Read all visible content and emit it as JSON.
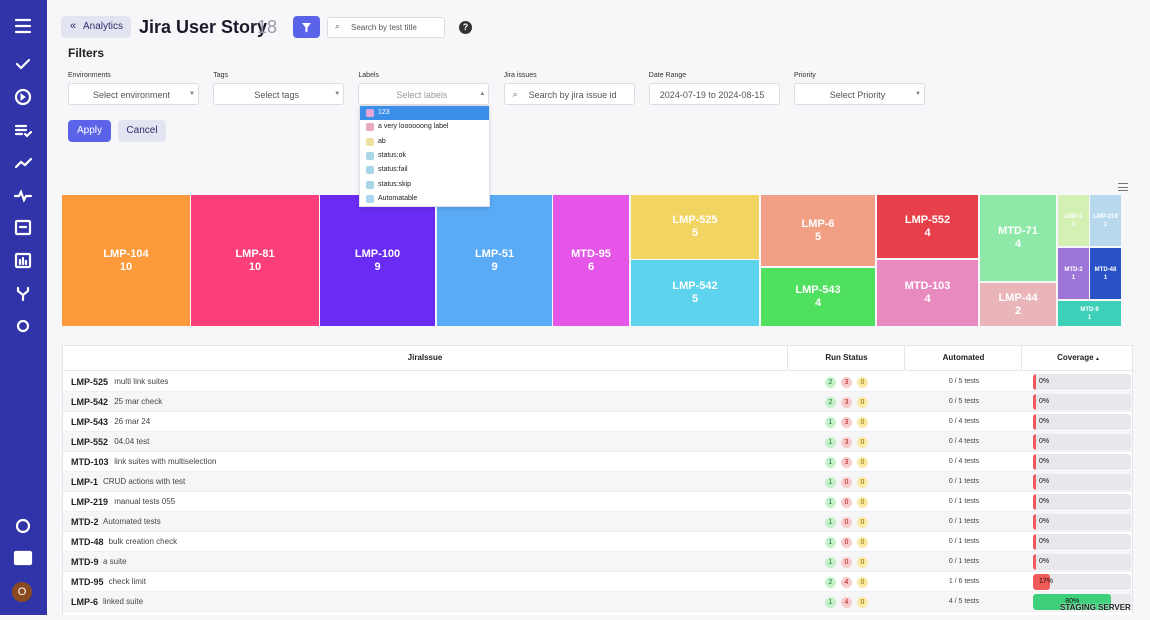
{
  "sidebar": {
    "avatar": "O"
  },
  "header": {
    "back": "Analytics",
    "title": "Jira User Story",
    "count": "18",
    "search": "Search by test title"
  },
  "filters": {
    "title": "Filters",
    "fields": [
      {
        "label": "Environments",
        "placeholder": "Select environment"
      },
      {
        "label": "Tags",
        "placeholder": "Select tags"
      },
      {
        "label": "Labels",
        "placeholder": "Select labels"
      },
      {
        "label": "Jira issues",
        "placeholder": "Search by jira issue id"
      },
      {
        "label": "Date Range",
        "placeholder": "2024-07-19 to 2024-08-15"
      },
      {
        "label": "Priority",
        "placeholder": "Select Priority"
      }
    ],
    "apply": "Apply",
    "cancel": "Cancel",
    "options": [
      {
        "label": "123",
        "color": "#e7a6d6"
      },
      {
        "label": "a very loooooong label",
        "color": "#eaa8bb"
      },
      {
        "label": "ab",
        "color": "#efe0a2"
      },
      {
        "label": "status:ok",
        "color": "#a9d6e6"
      },
      {
        "label": "status:fail",
        "color": "#a9d6e6"
      },
      {
        "label": "status:skip",
        "color": "#a9d6e6"
      },
      {
        "label": "Automatable",
        "color": "#a9d6f0"
      }
    ]
  },
  "treemap": [
    {
      "label": "LMP-104",
      "value": 10,
      "color": "#fd9a3c"
    },
    {
      "label": "LMP-81",
      "value": 10,
      "color": "#fb3f7b"
    },
    {
      "label": "LMP-100",
      "value": 9,
      "color": "#6a2cf5"
    },
    {
      "label": "LMP-51",
      "value": 9,
      "color": "#5aabf5"
    },
    {
      "label": "MTD-95",
      "value": 6,
      "color": "#e455e8"
    },
    {
      "label": "LMP-525",
      "value": 5,
      "color": "#f2d462"
    },
    {
      "label": "LMP-542",
      "value": 5,
      "color": "#5dd3ee"
    },
    {
      "label": "LMP-6",
      "value": 5,
      "color": "#f2a085"
    },
    {
      "label": "LMP-543",
      "value": 4,
      "color": "#4ee05e"
    },
    {
      "label": "LMP-552",
      "value": 4,
      "color": "#e8404b"
    },
    {
      "label": "MTD-103",
      "value": 4,
      "color": "#e889bf"
    },
    {
      "label": "MTD-71",
      "value": 4,
      "color": "#8ee8a8"
    },
    {
      "label": "LMP-44",
      "value": 2,
      "color": "#eab5b9"
    },
    {
      "label": "LMP-1",
      "value": 1,
      "color": "#d4f0b4"
    },
    {
      "label": "LMP-219",
      "value": 1,
      "color": "#b8d8ee"
    },
    {
      "label": "MTD-2",
      "value": 1,
      "color": "#9d75d8"
    },
    {
      "label": "MTD-48",
      "value": 1,
      "color": "#2a52c8"
    },
    {
      "label": "MTD-9",
      "value": 1,
      "color": "#3dcfb8"
    }
  ],
  "table": {
    "headers": [
      "JiraIssue",
      "Run Status",
      "Automated",
      "Coverage"
    ],
    "rows": [
      {
        "key": "LMP-525",
        "desc": "multi link suites",
        "status": [
          2,
          3,
          0
        ],
        "automated": "0 / 5 tests",
        "coverage": 0,
        "coverage_label": "0%"
      },
      {
        "key": "LMP-542",
        "desc": "25 mar check",
        "status": [
          2,
          3,
          0
        ],
        "automated": "0 / 5 tests",
        "coverage": 0,
        "coverage_label": "0%"
      },
      {
        "key": "LMP-543",
        "desc": "26 mar 24",
        "status": [
          1,
          3,
          0
        ],
        "automated": "0 / 4 tests",
        "coverage": 0,
        "coverage_label": "0%"
      },
      {
        "key": "LMP-552",
        "desc": "04.04 test",
        "status": [
          1,
          3,
          0
        ],
        "automated": "0 / 4 tests",
        "coverage": 0,
        "coverage_label": "0%"
      },
      {
        "key": "MTD-103",
        "desc": "link suites with multiselection",
        "status": [
          1,
          3,
          0
        ],
        "automated": "0 / 4 tests",
        "coverage": 0,
        "coverage_label": "0%"
      },
      {
        "key": "LMP-1",
        "desc": "CRUD actions with test",
        "status": [
          1,
          0,
          0
        ],
        "automated": "0 / 1 tests",
        "coverage": 0,
        "coverage_label": "0%"
      },
      {
        "key": "LMP-219",
        "desc": "manual tests 055",
        "status": [
          1,
          0,
          0
        ],
        "automated": "0 / 1 tests",
        "coverage": 0,
        "coverage_label": "0%"
      },
      {
        "key": "MTD-2",
        "desc": "Automated tests",
        "status": [
          1,
          0,
          0
        ],
        "automated": "0 / 1 tests",
        "coverage": 0,
        "coverage_label": "0%"
      },
      {
        "key": "MTD-48",
        "desc": "bulk creation check",
        "status": [
          1,
          0,
          0
        ],
        "automated": "0 / 1 tests",
        "coverage": 0,
        "coverage_label": "0%"
      },
      {
        "key": "MTD-9",
        "desc": "a suite",
        "status": [
          1,
          0,
          0
        ],
        "automated": "0 / 1 tests",
        "coverage": 0,
        "coverage_label": "0%"
      },
      {
        "key": "MTD-95",
        "desc": "check limit",
        "status": [
          2,
          4,
          0
        ],
        "automated": "1 / 6 tests",
        "coverage": 17,
        "coverage_label": "17%"
      },
      {
        "key": "LMP-6",
        "desc": "linked suite",
        "status": [
          1,
          4,
          0
        ],
        "automated": "4 / 5 tests",
        "coverage": 80,
        "coverage_label": "80%"
      }
    ]
  },
  "watermark": "STAGING SERVER"
}
